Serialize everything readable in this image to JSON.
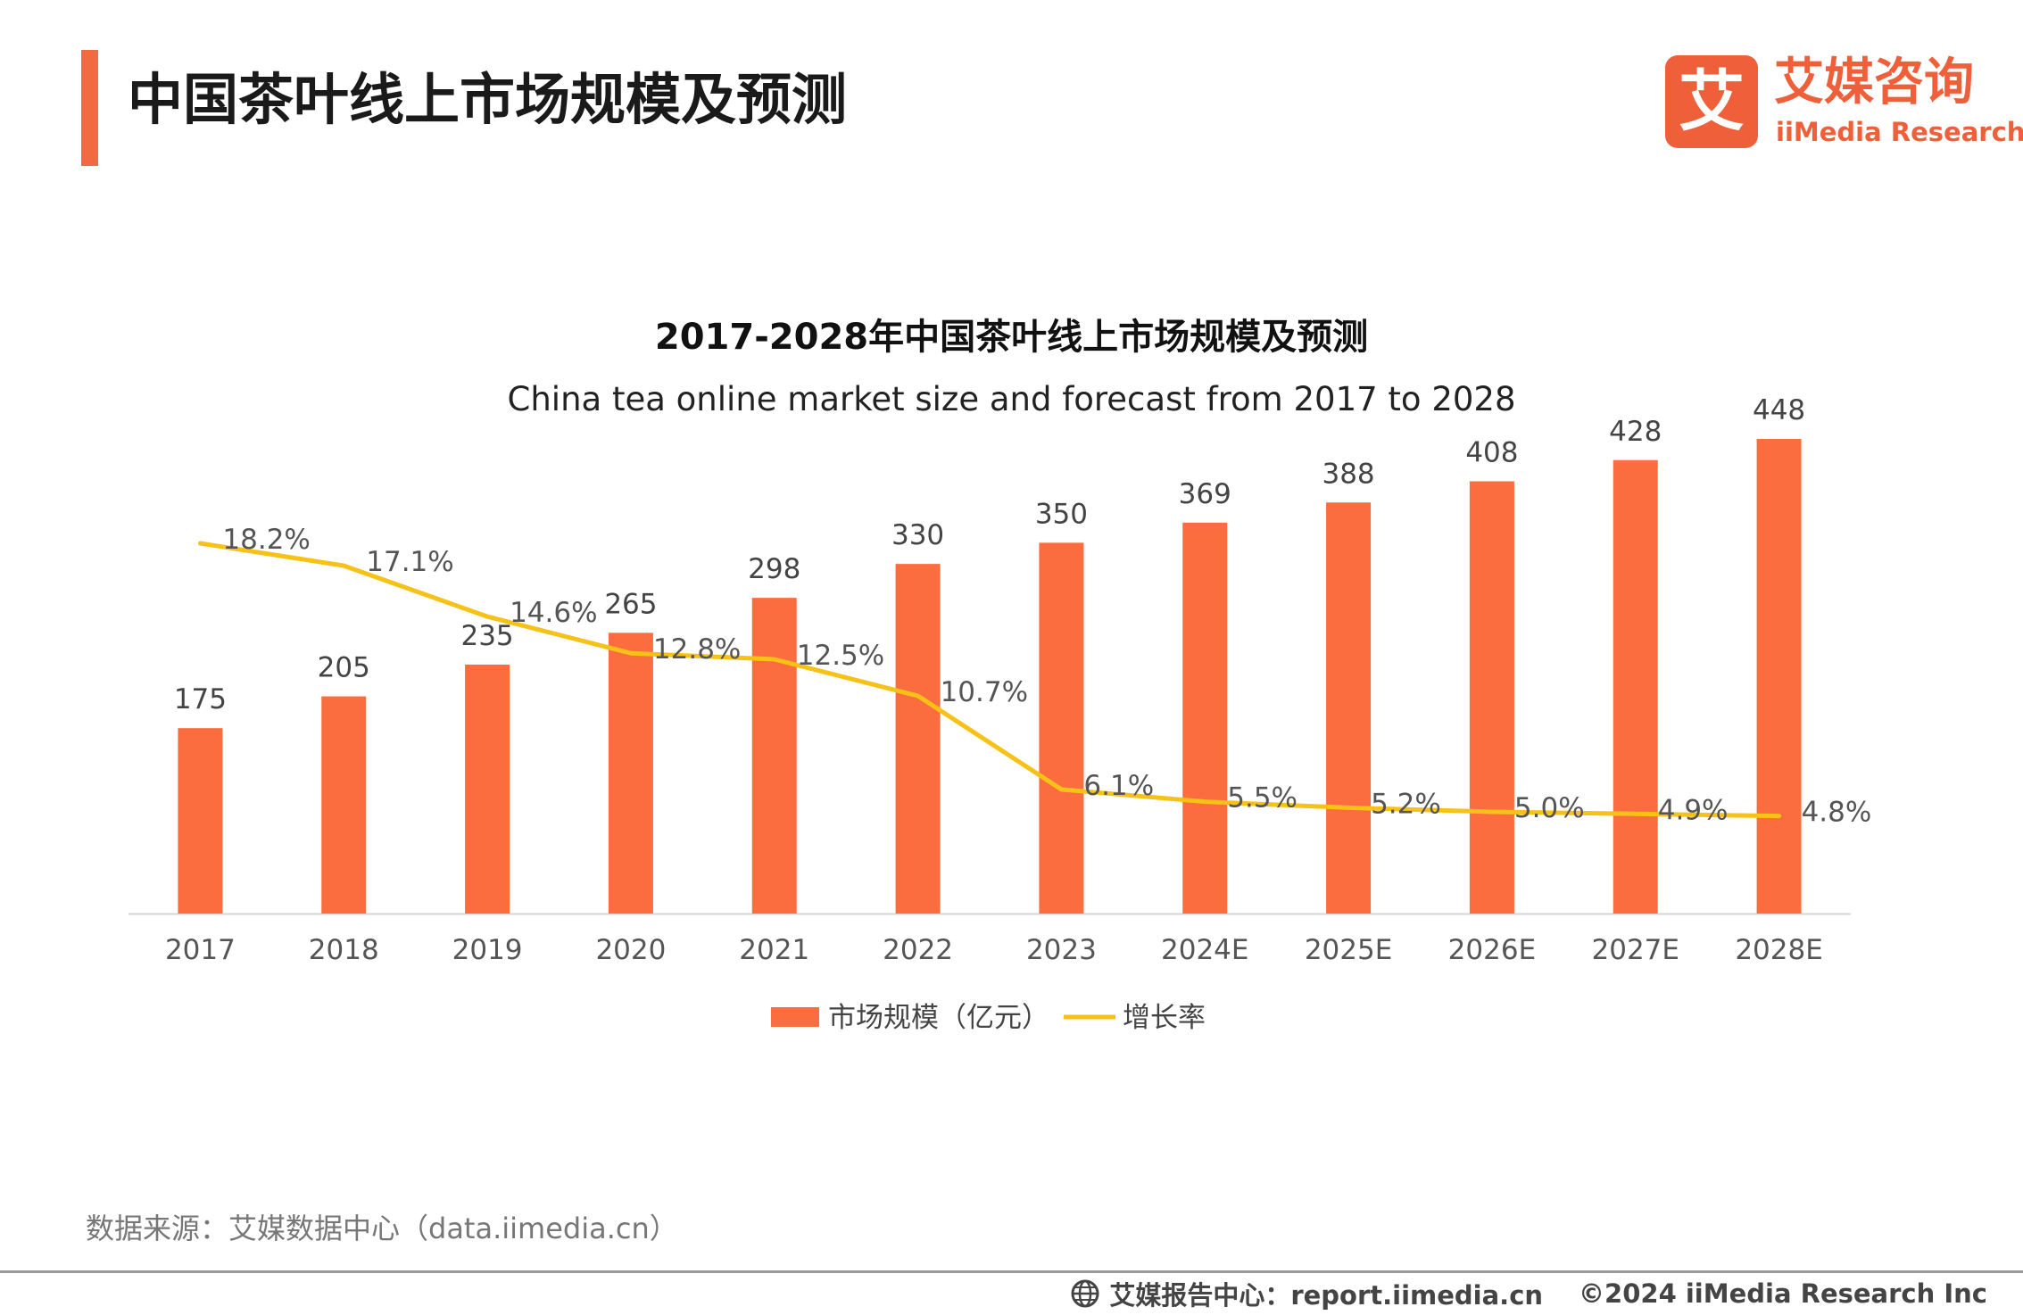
{
  "header": {
    "title": "中国茶叶线上市场规模及预测",
    "logo_mark": "艾",
    "logo_cn": "艾媒咨询",
    "logo_en": "iiMedia Research"
  },
  "colors": {
    "bar": "#fb6d3f",
    "line": "#f7c217",
    "accent": "#f26a3f"
  },
  "chart_data": {
    "type": "bar",
    "title": "2017-2028年中国茶叶线上市场规模及预测",
    "subtitle": "China tea online market size and forecast from 2017 to 2028",
    "categories": [
      "2017",
      "2018",
      "2019",
      "2020",
      "2021",
      "2022",
      "2023",
      "2024E",
      "2025E",
      "2026E",
      "2027E",
      "2028E"
    ],
    "series": [
      {
        "name": "市场规模（亿元）",
        "type": "bar",
        "values": [
          175,
          205,
          235,
          265,
          298,
          330,
          350,
          369,
          388,
          408,
          428,
          448
        ]
      },
      {
        "name": "增长率",
        "type": "line",
        "values": [
          18.2,
          17.1,
          14.6,
          12.8,
          12.5,
          10.7,
          6.1,
          5.5,
          5.2,
          5.0,
          4.9,
          4.8
        ],
        "labels": [
          "18.2%",
          "17.1%",
          "14.6%",
          "12.8%",
          "12.5%",
          "10.7%",
          "6.1%",
          "5.5%",
          "5.2%",
          "5.0%",
          "4.9%",
          "4.8%"
        ]
      }
    ],
    "xlabel": "",
    "ylabel": "",
    "ylim": [
      0,
      480
    ],
    "y2lim": [
      0,
      25
    ],
    "legend_position": "bottom-center"
  },
  "footer": {
    "source": "数据来源：艾媒数据中心（data.iimedia.cn）",
    "report_center": "艾媒报告中心：report.iimedia.cn",
    "copyright": "©2024  iiMedia Research  Inc"
  }
}
